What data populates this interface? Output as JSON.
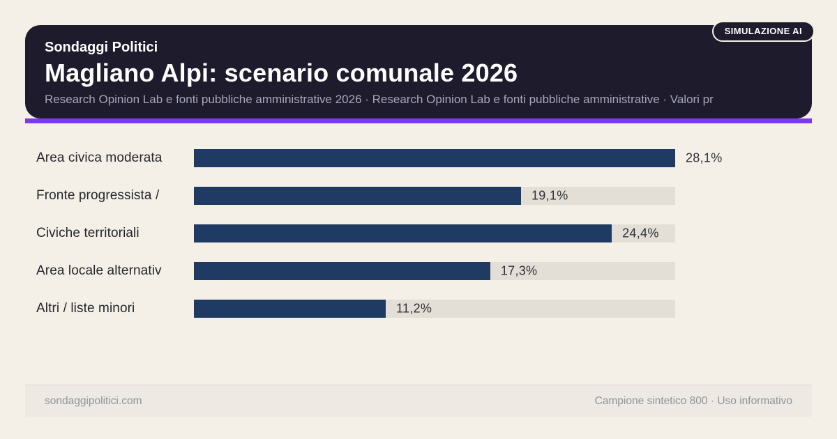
{
  "badge_label": "SIMULAZIONE AI",
  "header": {
    "kicker": "Sondaggi Politici",
    "title": "Magliano Alpi: scenario comunale 2026",
    "subtitle": "Research Opinion Lab e fonti pubbliche amministrative 2026 · Research Opinion Lab e fonti pubbliche amministrative · Valori pr"
  },
  "chart_data": {
    "type": "bar",
    "orientation": "horizontal",
    "categories": [
      "Area civica moderata",
      "Fronte progressista /",
      "Civiche territoriali",
      "Area locale alternativ",
      "Altri / liste minori"
    ],
    "values": [
      28.1,
      19.1,
      24.4,
      17.3,
      11.2
    ],
    "value_labels": [
      "28,1%",
      "19,1%",
      "24,4%",
      "17,3%",
      "11,2%"
    ],
    "max_value": 28.1,
    "unit": "%",
    "grid": false,
    "legend": false,
    "bar_color": "#1f3a63",
    "track_color": "#e4dfd6"
  },
  "footer": {
    "left": "sondaggipolitici.com",
    "right": "Campione sintetico 800 · Uso informativo"
  },
  "colors": {
    "background": "#f5f0e7",
    "header_bg": "#1e1b2d",
    "accent": "#7c3aed",
    "bar": "#1f3a63",
    "track": "#e4dfd6"
  }
}
